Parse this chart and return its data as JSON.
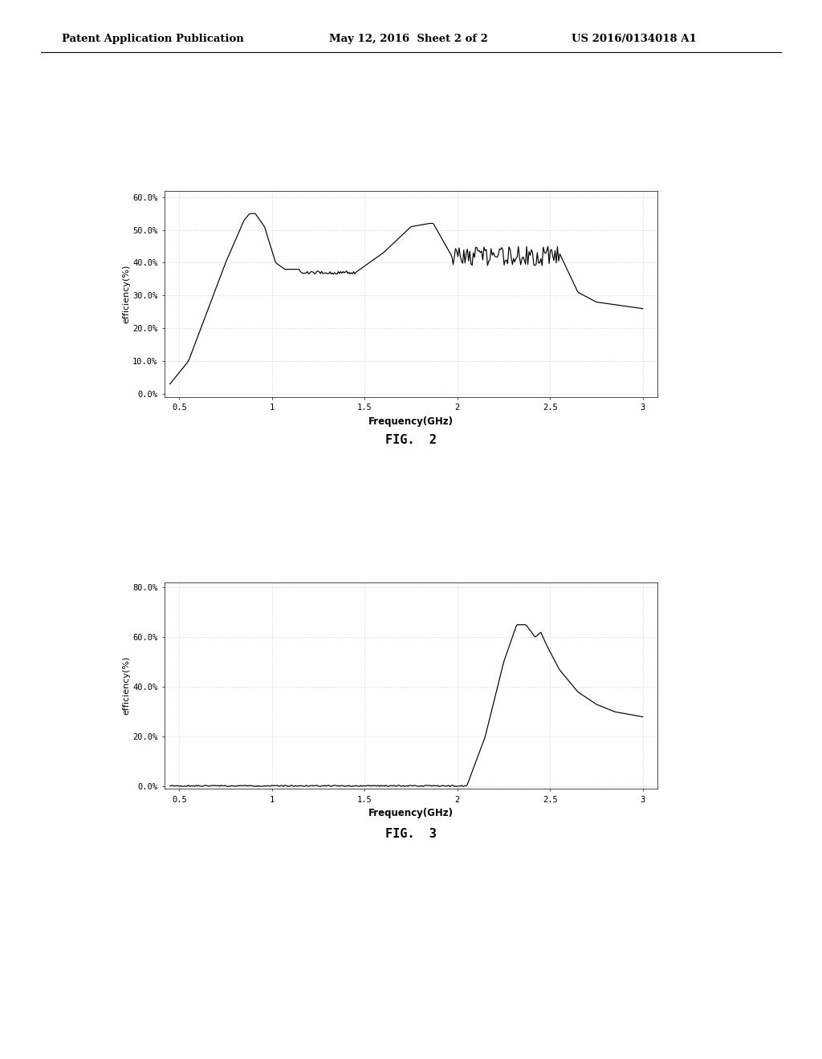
{
  "header_left": "Patent Application Publication",
  "header_mid": "May 12, 2016  Sheet 2 of 2",
  "header_right": "US 2016/0134018 A1",
  "fig2_label": "FIG.  2",
  "fig3_label": "FIG.  3",
  "xlabel": "Frequency",
  "xlabel_unit": "(GHz)",
  "ylabel": "efficiency(%)",
  "fig2_yticks": [
    "0.0%",
    "10.0%",
    "20.0%",
    "30.0%",
    "40.0%",
    "50.0%",
    "60.0%"
  ],
  "fig2_ytick_vals": [
    0,
    10,
    20,
    30,
    40,
    50,
    60
  ],
  "fig2_ylim": [
    -1,
    62
  ],
  "fig3_yticks": [
    "0.0%",
    "20.0%",
    "40.0%",
    "60.0%",
    "80.0%"
  ],
  "fig3_ytick_vals": [
    0,
    20,
    40,
    60,
    80
  ],
  "fig3_ylim": [
    -1,
    82
  ],
  "xticks": [
    0.5,
    1,
    1.5,
    2,
    2.5,
    3
  ],
  "xlim": [
    0.42,
    3.08
  ],
  "background": "#ffffff",
  "line_color": "#000000",
  "grid_color": "#bbbbbb"
}
